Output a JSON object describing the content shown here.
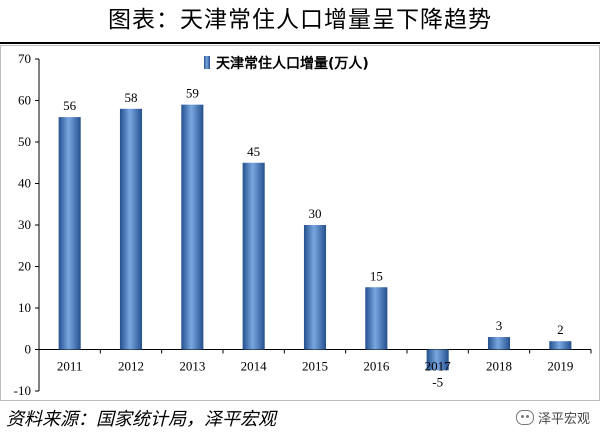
{
  "title": "图表：天津常住人口增量呈下降趋势",
  "source": "资料来源：国家统计局，泽平宏观",
  "watermark": "泽平宏观",
  "colors": {
    "bar_fill": "#3f78c8",
    "bar_dark": "#24508f",
    "bar_light": "#7aa6e0",
    "axis": "#000000"
  },
  "chart_data": {
    "type": "bar",
    "categories": [
      "2011",
      "2012",
      "2013",
      "2014",
      "2015",
      "2016",
      "2017",
      "2018",
      "2019"
    ],
    "series": [
      {
        "name": "天津常住人口增量(万人)",
        "values": [
          56,
          58,
          59,
          45,
          30,
          15,
          -5,
          3,
          2
        ]
      }
    ],
    "yticks": [
      -10,
      0,
      10,
      20,
      30,
      40,
      50,
      60,
      70
    ],
    "ylim": [
      -10,
      70
    ],
    "grid": false,
    "legend_position": "top-center",
    "data_labels": [
      "56",
      "58",
      "59",
      "45",
      "30",
      "15",
      "-5",
      "3",
      "2"
    ]
  }
}
